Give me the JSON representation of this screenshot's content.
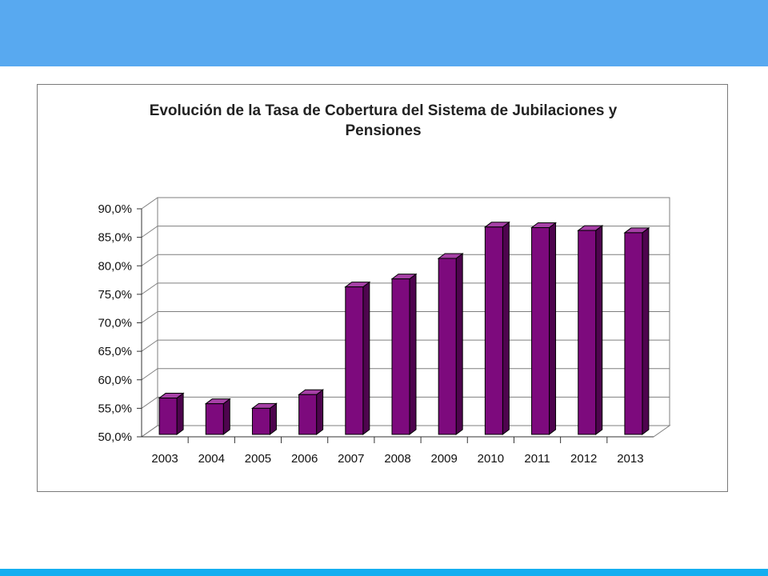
{
  "colors": {
    "top_band": "#58a9f0",
    "bottom_band": "#15aef0",
    "bar_front": "#7d0a7d",
    "bar_side": "#4e044e",
    "bar_top": "#a640a6",
    "grid": "#7f7f7f"
  },
  "chart_data": {
    "type": "bar",
    "title": "Evolución de la Tasa de Cobertura del Sistema de Jubilaciones y Pensiones",
    "xlabel": "",
    "ylabel": "",
    "categories": [
      "2003",
      "2004",
      "2005",
      "2006",
      "2007",
      "2008",
      "2009",
      "2010",
      "2011",
      "2012",
      "2013"
    ],
    "values": [
      56.8,
      55.8,
      55.0,
      57.4,
      76.3,
      77.7,
      81.3,
      86.8,
      86.7,
      86.2,
      85.8
    ],
    "ylim": [
      50,
      90
    ],
    "yticks": [
      50,
      55,
      60,
      65,
      70,
      75,
      80,
      85,
      90
    ],
    "ytick_labels": [
      "50,0%",
      "55,0%",
      "60,0%",
      "65,0%",
      "70,0%",
      "75,0%",
      "80,0%",
      "85,0%",
      "90,0%"
    ],
    "grid": true,
    "legend": false,
    "style": "3d"
  }
}
